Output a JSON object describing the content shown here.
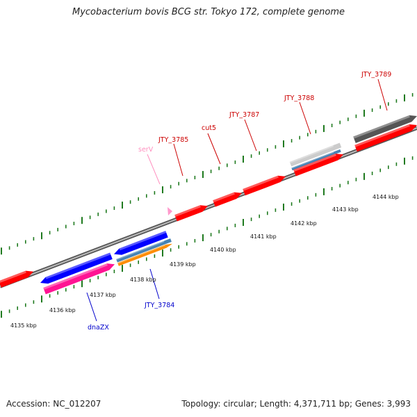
{
  "title": "Mycobacterium bovis BCG str. Tokyo 172, complete genome",
  "footer": {
    "accession": "Accession: NC_012207",
    "topology": "Topology: circular; Length: 4,371,711 bp; Genes: 3,993"
  },
  "colors": {
    "backbone": "#8a8a8a",
    "ticks": "#1f7a1f",
    "cds": "#ff0000",
    "cds_alt": "#0000ff",
    "rna": "#ff1493",
    "trna": "#ff99cc",
    "orange": "#ff8c00",
    "steelblue": "#4682b4",
    "grey": "#555555",
    "lightgrey": "#cccccc",
    "label_red": "#cc0000",
    "label_blue": "#0000cc",
    "label_pink": "#ff8fbf"
  },
  "scale_labels": [
    "4135 kbp",
    "4136 kbp",
    "4137 kbp",
    "4138 kbp",
    "4139 kbp",
    "4140 kbp",
    "4141 kbp",
    "4142 kbp",
    "4143 kbp",
    "4144 kbp"
  ],
  "gene_labels": [
    {
      "id": "jty3789",
      "text": "JTY_3789",
      "color": "label_red"
    },
    {
      "id": "jty3788",
      "text": "JTY_3788",
      "color": "label_red"
    },
    {
      "id": "jty3787",
      "text": "JTY_3787",
      "color": "label_red"
    },
    {
      "id": "cut5",
      "text": "cut5",
      "color": "label_red"
    },
    {
      "id": "jty3785",
      "text": "JTY_3785",
      "color": "label_red"
    },
    {
      "id": "serV",
      "text": "serV",
      "color": "label_pink"
    },
    {
      "id": "jty3784",
      "text": "JTY_3784",
      "color": "label_blue"
    },
    {
      "id": "dnaZX",
      "text": "dnaZX",
      "color": "label_blue"
    }
  ]
}
